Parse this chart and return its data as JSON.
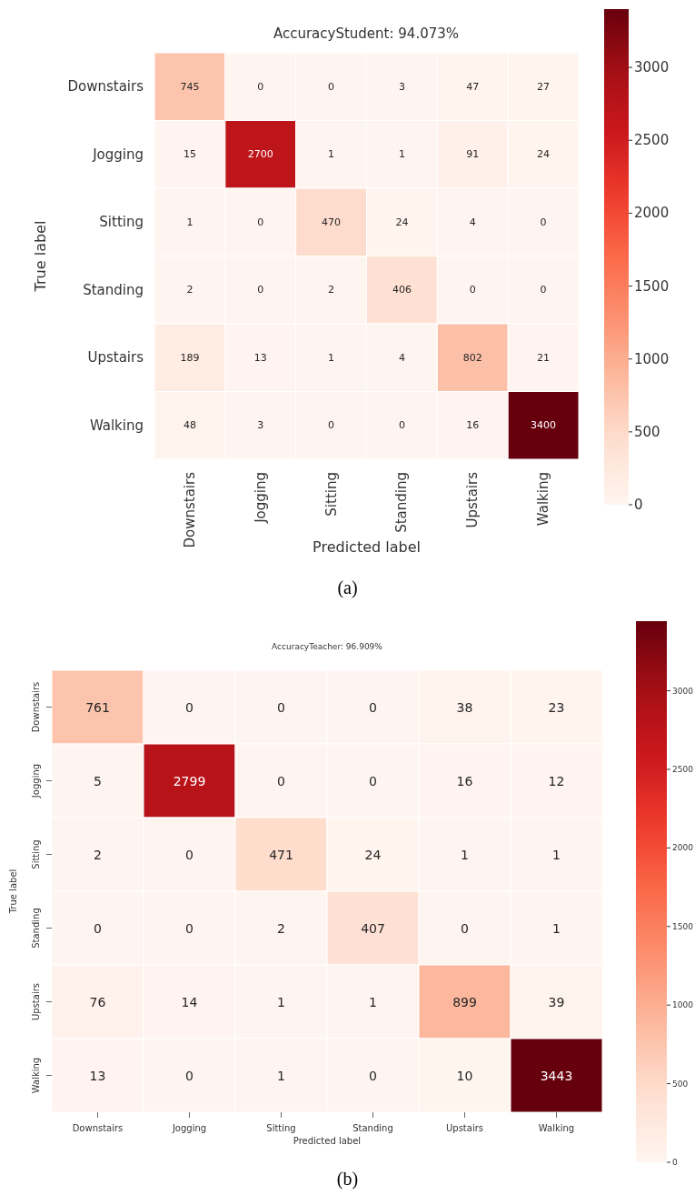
{
  "chart_data": [
    {
      "type": "heatmap",
      "title": "AccuracyStudent: 94.073%",
      "xlabel": "Predicted label",
      "ylabel": "True label",
      "annotations": [
        "(a)"
      ],
      "categories": [
        "Downstairs",
        "Jogging",
        "Sitting",
        "Standing",
        "Upstairs",
        "Walking"
      ],
      "y_categories": [
        "Downstairs",
        "Jogging",
        "Sitting",
        "Standing",
        "Upstairs",
        "Walking"
      ],
      "cells": [
        [
          745,
          0,
          0,
          3,
          47,
          27
        ],
        [
          15,
          2700,
          1,
          1,
          91,
          24
        ],
        [
          1,
          0,
          470,
          24,
          4,
          0
        ],
        [
          2,
          0,
          2,
          406,
          0,
          0
        ],
        [
          189,
          13,
          1,
          4,
          802,
          21
        ],
        [
          48,
          3,
          0,
          0,
          16,
          3400
        ]
      ],
      "clim": [
        0,
        3400
      ],
      "cticks": [
        0,
        500,
        1000,
        1500,
        2000,
        2500,
        3000
      ],
      "data_labels": true
    },
    {
      "type": "heatmap",
      "title": "AccuracyTeacher: 96.909%",
      "xlabel": "Predicted label",
      "ylabel": "True label",
      "annotations": [
        "(b)"
      ],
      "categories": [
        "Downstairs",
        "Jogging",
        "Sitting",
        "Standing",
        "Upstairs",
        "Walking"
      ],
      "y_categories": [
        "Downstairs",
        "Jogging",
        "Sitting",
        "Standing",
        "Upstairs",
        "Walking"
      ],
      "cells": [
        [
          761,
          0,
          0,
          0,
          38,
          23
        ],
        [
          5,
          2799,
          0,
          0,
          16,
          12
        ],
        [
          2,
          0,
          471,
          24,
          1,
          1
        ],
        [
          0,
          0,
          2,
          407,
          0,
          1
        ],
        [
          76,
          14,
          1,
          1,
          899,
          39
        ],
        [
          13,
          0,
          1,
          0,
          10,
          3443
        ]
      ],
      "clim": [
        0,
        3443
      ],
      "cticks": [
        0,
        500,
        1000,
        1500,
        2000,
        2500,
        3000
      ],
      "data_labels": true
    }
  ]
}
